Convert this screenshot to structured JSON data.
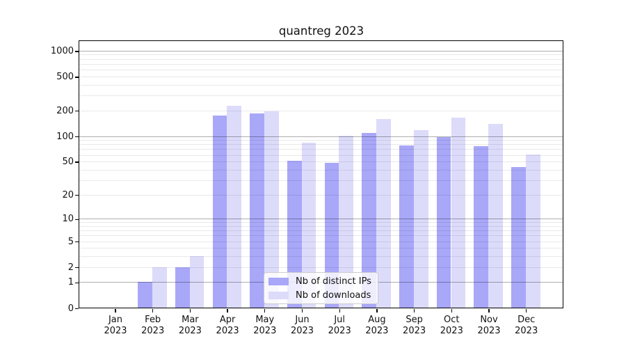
{
  "title": "quantreg 2023",
  "chart_data": {
    "type": "bar",
    "title": "quantreg 2023",
    "categories": [
      "Jan 2023",
      "Feb 2023",
      "Mar 2023",
      "Apr 2023",
      "May 2023",
      "Jun 2023",
      "Jul 2023",
      "Aug 2023",
      "Sep 2023",
      "Oct 2023",
      "Nov 2023",
      "Dec 2023"
    ],
    "series": [
      {
        "name": "Nb of distinct IPs",
        "color": "#a8a7f8",
        "values": [
          0,
          1,
          2,
          173,
          185,
          51,
          48,
          110,
          78,
          97,
          76,
          43
        ]
      },
      {
        "name": "Nb of downloads",
        "color": "#dcdbfa",
        "values": [
          0,
          2,
          3,
          225,
          195,
          84,
          101,
          158,
          118,
          166,
          140,
          61
        ]
      }
    ],
    "xlabel": "",
    "ylabel": "",
    "yscale": "log1p",
    "yticks": [
      0,
      1,
      2,
      5,
      10,
      20,
      50,
      100,
      200,
      500,
      1000
    ],
    "ylim": [
      0,
      1000
    ],
    "grid": {
      "orientation": "horizontal",
      "major_at": [
        1,
        10,
        100,
        1000
      ],
      "minor_at": [
        2,
        3,
        4,
        5,
        6,
        7,
        8,
        9,
        20,
        30,
        40,
        50,
        60,
        70,
        80,
        90,
        200,
        300,
        400,
        500,
        600,
        700,
        800,
        900
      ]
    },
    "legend_position": "inside-bottom-center"
  }
}
